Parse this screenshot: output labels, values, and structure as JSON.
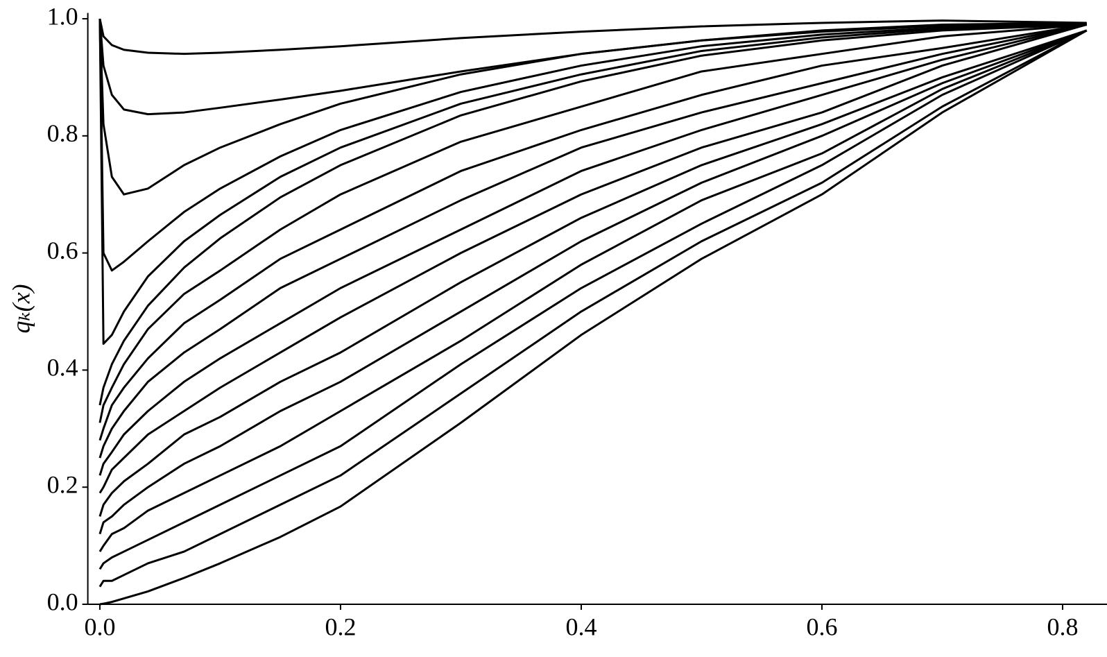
{
  "chart_data": {
    "type": "line",
    "ylabel": "qₖ(x)",
    "x": [
      0,
      0.003,
      0.01,
      0.02,
      0.04,
      0.07,
      0.1,
      0.15,
      0.2,
      0.3,
      0.4,
      0.5,
      0.6,
      0.7,
      0.82
    ],
    "series": [
      {
        "color": "#000000",
        "values": [
          1.0,
          0.97,
          0.955,
          0.947,
          0.942,
          0.94,
          0.942,
          0.947,
          0.953,
          0.967,
          0.978,
          0.987,
          0.993,
          0.997,
          0.993
        ]
      },
      {
        "color": "#000000",
        "values": [
          1.0,
          0.92,
          0.87,
          0.845,
          0.837,
          0.84,
          0.848,
          0.862,
          0.877,
          0.91,
          0.94,
          0.963,
          0.98,
          0.99,
          0.993
        ]
      },
      {
        "color": "#000000",
        "values": [
          1.0,
          0.82,
          0.73,
          0.7,
          0.71,
          0.75,
          0.78,
          0.82,
          0.855,
          0.905,
          0.94,
          0.963,
          0.978,
          0.988,
          0.992
        ]
      },
      {
        "color": "#000000",
        "values": [
          1.0,
          0.6,
          0.57,
          0.585,
          0.62,
          0.67,
          0.71,
          0.765,
          0.81,
          0.875,
          0.92,
          0.953,
          0.973,
          0.985,
          0.991
        ]
      },
      {
        "color": "#000000",
        "values": [
          1.0,
          0.445,
          0.46,
          0.5,
          0.56,
          0.62,
          0.665,
          0.73,
          0.78,
          0.855,
          0.905,
          0.945,
          0.968,
          0.983,
          0.99
        ]
      },
      {
        "color": "#000000",
        "values": [
          0.34,
          0.37,
          0.41,
          0.45,
          0.51,
          0.575,
          0.625,
          0.695,
          0.75,
          0.835,
          0.893,
          0.937,
          0.963,
          0.98,
          0.99
        ]
      },
      {
        "color": "#000000",
        "values": [
          0.31,
          0.34,
          0.37,
          0.41,
          0.47,
          0.53,
          0.57,
          0.64,
          0.7,
          0.79,
          0.85,
          0.91,
          0.94,
          0.97,
          0.99
        ]
      },
      {
        "color": "#000000",
        "values": [
          0.28,
          0.3,
          0.34,
          0.37,
          0.42,
          0.48,
          0.52,
          0.59,
          0.64,
          0.74,
          0.81,
          0.87,
          0.92,
          0.95,
          0.99
        ]
      },
      {
        "color": "#000000",
        "values": [
          0.25,
          0.27,
          0.3,
          0.33,
          0.38,
          0.43,
          0.47,
          0.54,
          0.59,
          0.69,
          0.78,
          0.84,
          0.89,
          0.94,
          0.99
        ]
      },
      {
        "color": "#000000",
        "values": [
          0.22,
          0.24,
          0.26,
          0.29,
          0.33,
          0.38,
          0.42,
          0.48,
          0.54,
          0.64,
          0.74,
          0.81,
          0.87,
          0.93,
          0.99
        ]
      },
      {
        "color": "#000000",
        "values": [
          0.19,
          0.2,
          0.23,
          0.25,
          0.29,
          0.33,
          0.37,
          0.43,
          0.49,
          0.6,
          0.7,
          0.78,
          0.84,
          0.92,
          0.99
        ]
      },
      {
        "color": "#000000",
        "values": [
          0.15,
          0.17,
          0.19,
          0.21,
          0.24,
          0.29,
          0.32,
          0.38,
          0.43,
          0.55,
          0.66,
          0.75,
          0.82,
          0.9,
          0.98
        ]
      },
      {
        "color": "#000000",
        "values": [
          0.12,
          0.14,
          0.15,
          0.17,
          0.2,
          0.24,
          0.27,
          0.33,
          0.38,
          0.5,
          0.62,
          0.72,
          0.8,
          0.89,
          0.98
        ]
      },
      {
        "color": "#000000",
        "values": [
          0.09,
          0.1,
          0.12,
          0.13,
          0.16,
          0.19,
          0.22,
          0.27,
          0.33,
          0.45,
          0.58,
          0.69,
          0.77,
          0.88,
          0.98
        ]
      },
      {
        "color": "#000000",
        "values": [
          0.06,
          0.07,
          0.08,
          0.09,
          0.11,
          0.14,
          0.17,
          0.22,
          0.27,
          0.41,
          0.54,
          0.65,
          0.75,
          0.87,
          0.98
        ]
      },
      {
        "color": "#000000",
        "values": [
          0.03,
          0.04,
          0.04,
          0.05,
          0.07,
          0.09,
          0.12,
          0.17,
          0.22,
          0.36,
          0.5,
          0.62,
          0.72,
          0.85,
          0.98
        ]
      },
      {
        "color": "#000000",
        "values": [
          0,
          0.001,
          0.004,
          0.01,
          0.022,
          0.045,
          0.07,
          0.115,
          0.167,
          0.31,
          0.46,
          0.59,
          0.7,
          0.84,
          0.98
        ]
      }
    ],
    "xlim": [
      -0.01,
      0.82
    ],
    "xticks": [
      {
        "value": 0,
        "label": "0.0"
      },
      0.2,
      0.4,
      0.6,
      0.8
    ],
    "ylim": [
      0,
      1.01
    ],
    "yticks": [
      {
        "value": 0,
        "label": "0.0"
      },
      0.2,
      0.4,
      0.6,
      0.8,
      {
        "value": 1,
        "label": "1.0"
      }
    ],
    "grid": false
  }
}
